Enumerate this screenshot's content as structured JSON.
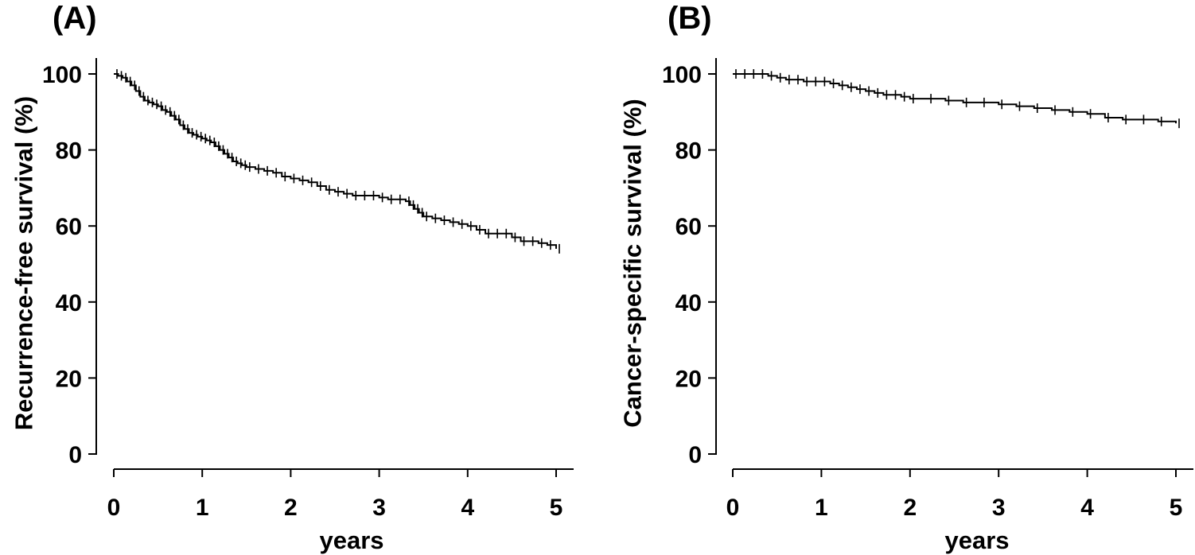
{
  "chart_data": [
    {
      "type": "line",
      "panel_label": "(A)",
      "title": "",
      "xlabel": "years",
      "ylabel": "Recurrence-free survival (%)",
      "xlim": [
        0,
        5
      ],
      "ylim": [
        0,
        100
      ],
      "x_ticks": [
        0,
        1,
        2,
        3,
        4,
        5
      ],
      "y_ticks": [
        0,
        20,
        40,
        60,
        80,
        100
      ],
      "series": [
        {
          "x": [
            0,
            0.05,
            0.1,
            0.15,
            0.2,
            0.25,
            0.3,
            0.35,
            0.4,
            0.45,
            0.5,
            0.55,
            0.6,
            0.65,
            0.7,
            0.75,
            0.8,
            0.85,
            0.9,
            0.95,
            1.0,
            1.05,
            1.1,
            1.15,
            1.2,
            1.25,
            1.3,
            1.35,
            1.4,
            1.45,
            1.5,
            1.6,
            1.7,
            1.8,
            1.9,
            2.0,
            2.1,
            2.2,
            2.3,
            2.4,
            2.5,
            2.6,
            2.7,
            2.8,
            2.9,
            3.0,
            3.1,
            3.2,
            3.3,
            3.35,
            3.4,
            3.45,
            3.5,
            3.6,
            3.7,
            3.8,
            3.9,
            4.0,
            4.1,
            4.2,
            4.3,
            4.4,
            4.5,
            4.6,
            4.7,
            4.8,
            4.9,
            5.0
          ],
          "y": [
            100,
            99.5,
            99,
            98,
            97,
            95.5,
            94,
            93,
            92.5,
            92,
            91.5,
            90.5,
            90,
            89,
            88,
            86.5,
            85.5,
            84.5,
            84,
            83.5,
            83,
            82.5,
            82,
            81,
            80,
            79,
            78,
            77,
            76.5,
            76,
            75.5,
            75,
            74.5,
            74,
            73,
            72.5,
            72,
            71.5,
            70.5,
            69.5,
            69,
            68.5,
            68,
            68,
            68,
            67.5,
            67,
            67,
            66.5,
            65.5,
            64.5,
            63.5,
            62.5,
            62,
            61.5,
            61,
            60.5,
            60,
            59,
            58,
            58,
            58,
            57,
            56,
            56,
            55.5,
            55,
            54
          ]
        }
      ]
    },
    {
      "type": "line",
      "panel_label": "(B)",
      "title": "",
      "xlabel": "years",
      "ylabel": "Cancer-specific survival (%)",
      "xlim": [
        0,
        5
      ],
      "ylim": [
        0,
        100
      ],
      "x_ticks": [
        0,
        1,
        2,
        3,
        4,
        5
      ],
      "y_ticks": [
        0,
        20,
        40,
        60,
        80,
        100
      ],
      "series": [
        {
          "x": [
            0,
            0.1,
            0.2,
            0.3,
            0.4,
            0.5,
            0.6,
            0.7,
            0.8,
            0.9,
            1.0,
            1.1,
            1.2,
            1.3,
            1.4,
            1.5,
            1.6,
            1.7,
            1.8,
            1.9,
            2.0,
            2.2,
            2.4,
            2.6,
            2.8,
            3.0,
            3.2,
            3.4,
            3.6,
            3.8,
            4.0,
            4.2,
            4.4,
            4.6,
            4.8,
            5.0
          ],
          "y": [
            100,
            100,
            100,
            100,
            99.5,
            99,
            98.5,
            98.5,
            98,
            98,
            98,
            97.5,
            97,
            96.5,
            96,
            95.5,
            95,
            94.5,
            94.5,
            94,
            93.5,
            93.5,
            93,
            92.5,
            92.5,
            92,
            91.5,
            91,
            90.5,
            90,
            89.5,
            88.5,
            88,
            88,
            87.5,
            87
          ]
        }
      ]
    }
  ]
}
